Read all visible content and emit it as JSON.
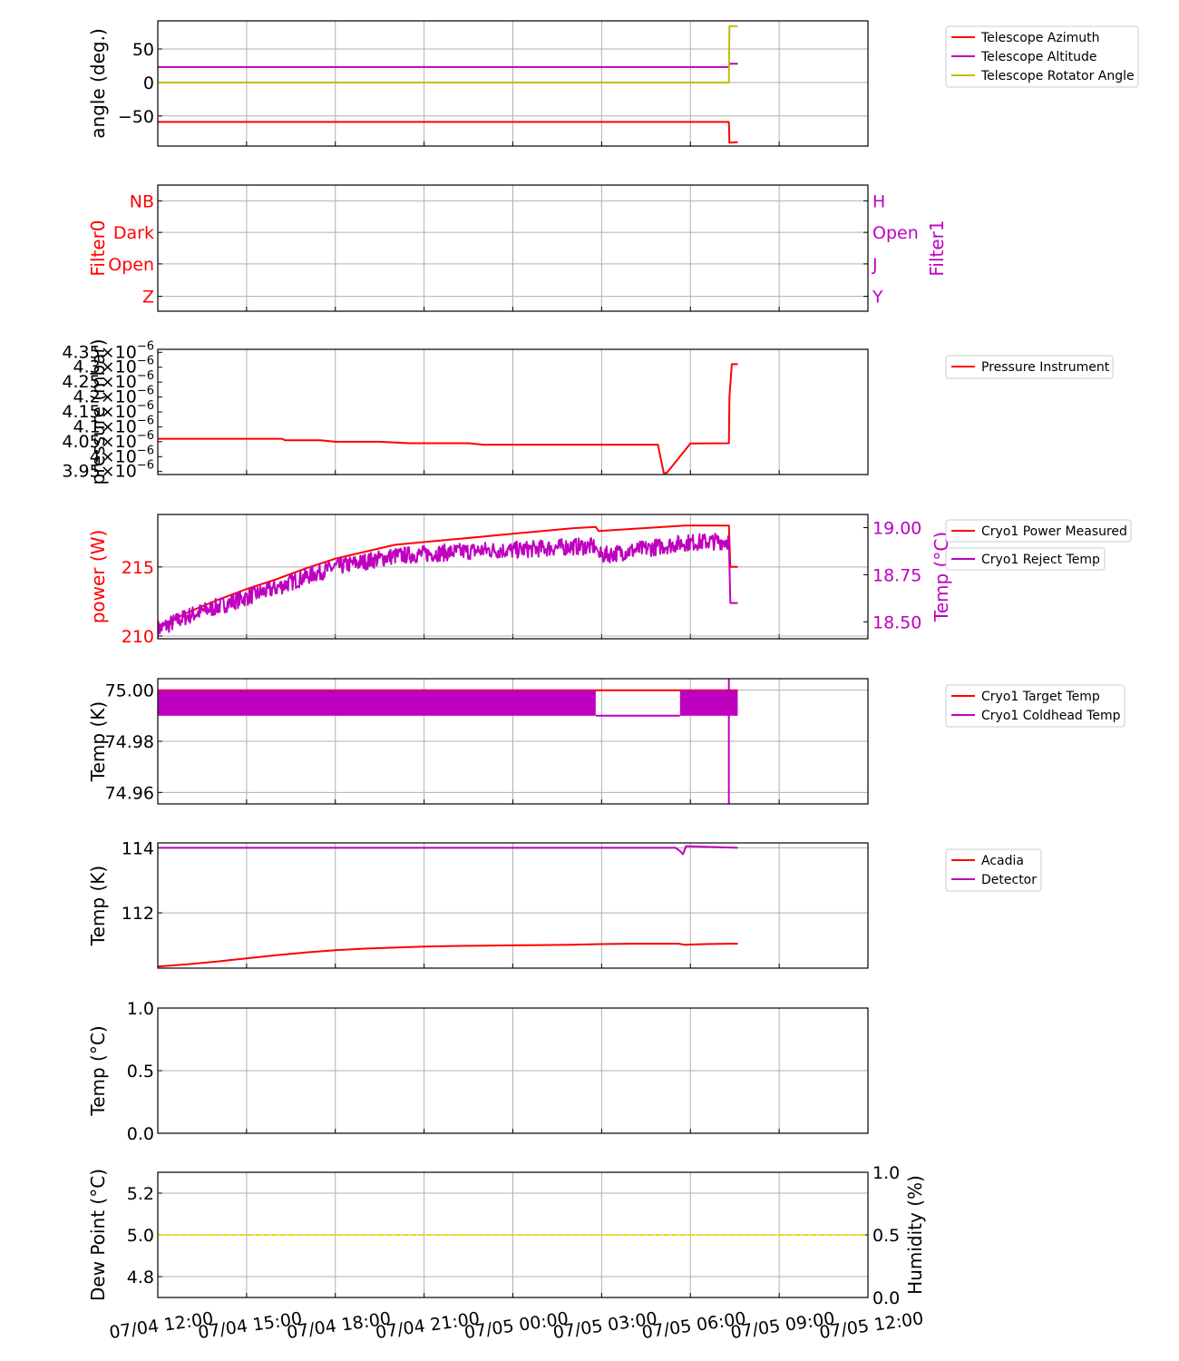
{
  "x_axis": {
    "tick_labels": [
      "07/04 12:00",
      "07/04 15:00",
      "07/04 18:00",
      "07/04 21:00",
      "07/05 00:00",
      "07/05 03:00",
      "07/05 06:00",
      "07/05 09:00",
      "07/05 12:00"
    ],
    "range_hours": [
      0,
      24
    ]
  },
  "colors": {
    "red": "#ff0000",
    "magenta": "#bf00bf",
    "olive": "#bfbf00",
    "gold": "#ffd700"
  },
  "chart_data": [
    {
      "id": "telescope",
      "type": "line",
      "ylabel": "angle (deg.)",
      "ylim": [
        -95,
        92
      ],
      "yticks": [
        -50,
        0,
        50
      ],
      "ytick_labels": [
        "−50",
        "0",
        "50"
      ],
      "legend": [
        "Telescope Azimuth",
        "Telescope Altitude",
        "Telescope Rotator Angle"
      ],
      "series": [
        {
          "name": "Telescope Azimuth",
          "color": "#ff0000",
          "x": [
            0,
            19.3,
            19.32,
            19.6
          ],
          "y": [
            -59,
            -59,
            -90,
            -89
          ]
        },
        {
          "name": "Telescope Altitude",
          "color": "#bf00bf",
          "x": [
            0,
            19.3,
            19.32,
            19.6
          ],
          "y": [
            23,
            23,
            28,
            28
          ]
        },
        {
          "name": "Telescope Rotator Angle",
          "color": "#bfbf00",
          "x": [
            0,
            19.3,
            19.32,
            19.6
          ],
          "y": [
            0,
            0,
            84,
            84
          ]
        }
      ]
    },
    {
      "id": "filters",
      "type": "line",
      "ylabel": "Filter0",
      "ylabel_right": "Filter1",
      "ylim": [
        0,
        4
      ],
      "ytick_labels": [
        "Z",
        "Open",
        "Dark",
        "NB"
      ],
      "ytick_labels_right": [
        "Y",
        "J",
        "Open",
        "H"
      ],
      "series": []
    },
    {
      "id": "pressure",
      "type": "line",
      "ylabel": "pressure (mbar)",
      "ylim": [
        3.94,
        4.36
      ],
      "ytick_mantissas": [
        "3.95",
        "4",
        "4.05",
        "4.1",
        "4.15",
        "4.2",
        "4.25",
        "4.3",
        "4.35"
      ],
      "ytick_values": [
        3.95,
        4.0,
        4.05,
        4.1,
        4.15,
        4.2,
        4.25,
        4.3,
        4.35
      ],
      "ytick_suffix": "×10",
      "ytick_exponent": "−6",
      "legend": [
        "Pressure Instrument"
      ],
      "series": [
        {
          "name": "Pressure Instrument",
          "color": "#ff0000",
          "x": [
            0,
            4.2,
            4.3,
            5.5,
            6,
            7.5,
            8.5,
            10.5,
            11,
            12.5,
            14,
            15.5,
            16.8,
            16.9,
            17.1,
            17.2,
            18,
            19.3,
            19.32,
            19.4,
            19.6
          ],
          "y": [
            4.06,
            4.06,
            4.055,
            4.055,
            4.05,
            4.05,
            4.045,
            4.045,
            4.04,
            4.04,
            4.04,
            4.04,
            4.04,
            4.04,
            3.945,
            3.945,
            4.044,
            4.045,
            4.2,
            4.31,
            4.31
          ]
        }
      ]
    },
    {
      "id": "cryo_power",
      "type": "line",
      "ylabel": "power (W)",
      "ylabel_right": "Temp (°C)",
      "ylim": [
        209.8,
        218.8
      ],
      "yticks": [
        210,
        215
      ],
      "ytick_labels": [
        "210",
        "215"
      ],
      "ylim_right": [
        18.41,
        19.07
      ],
      "yticks_right": [
        18.5,
        18.75,
        19.0
      ],
      "ytick_labels_right": [
        "18.50",
        "18.75",
        "19.00"
      ],
      "legend": [
        "Cryo1 Power Measured",
        "Cryo1 Reject Temp"
      ],
      "series": [
        {
          "name": "Cryo1 Power Measured",
          "color": "#ff0000",
          "x": [
            0,
            1,
            2,
            3,
            4,
            5,
            6,
            7,
            8,
            9,
            10,
            11,
            12,
            13,
            14,
            14.8,
            14.9,
            17.8,
            19.3,
            19.35,
            19.6
          ],
          "y": [
            210.6,
            211.7,
            212.6,
            213.4,
            214.1,
            214.9,
            215.6,
            216.1,
            216.6,
            216.8,
            217.0,
            217.2,
            217.4,
            217.6,
            217.8,
            217.9,
            217.6,
            218.0,
            218.0,
            215.0,
            215.0
          ]
        },
        {
          "name": "Cryo1 Reject Temp",
          "color": "#bf00bf",
          "x": [
            0,
            1,
            2,
            3,
            4,
            5,
            6,
            7,
            8,
            9,
            10,
            11,
            12,
            13,
            14,
            14.8,
            14.9,
            17.8,
            19.3,
            19.35,
            19.6
          ],
          "y": [
            18.46,
            18.53,
            18.58,
            18.63,
            18.68,
            18.74,
            18.79,
            18.82,
            18.85,
            18.86,
            18.87,
            18.88,
            18.88,
            18.89,
            18.9,
            18.9,
            18.85,
            18.92,
            18.93,
            18.6,
            18.6
          ],
          "noise": 0.045
        }
      ]
    },
    {
      "id": "cryo_target",
      "type": "line",
      "ylabel": "Temp (K)",
      "ylim": [
        74.9555,
        75.0045
      ],
      "yticks": [
        74.96,
        74.98,
        75.0
      ],
      "ytick_labels": [
        "74.96",
        "74.98",
        "75.00"
      ],
      "legend": [
        "Cryo1 Target Temp",
        "Cryo1 Coldhead Temp"
      ],
      "series": [
        {
          "name": "Cryo1 Target Temp",
          "color": "#ff0000",
          "x": [
            0,
            19.6
          ],
          "y": [
            75.0,
            75.0
          ]
        },
        {
          "name": "Cryo1 Coldhead Temp",
          "color": "#bf00bf",
          "bands": [
            [
              0,
              14.8
            ],
            [
              17.65,
              19.6
            ]
          ],
          "band_range": [
            74.99,
            75.0
          ],
          "x": [
            14.8,
            17.65
          ],
          "y": [
            74.99,
            74.99
          ]
        }
      ]
    },
    {
      "id": "acadia_detector",
      "type": "line",
      "ylabel": "Temp (K)",
      "ylim": [
        110.3,
        114.15
      ],
      "yticks": [
        112,
        114
      ],
      "ytick_labels": [
        "112",
        "114"
      ],
      "legend": [
        "Acadia",
        "Detector"
      ],
      "series": [
        {
          "name": "Acadia",
          "color": "#ff0000",
          "x": [
            0,
            1,
            2,
            3,
            4,
            5,
            6,
            7,
            8,
            9,
            10,
            11,
            12,
            13,
            14,
            15,
            16,
            17.6,
            17.8,
            18.5,
            19.3,
            19.6
          ],
          "y": [
            110.35,
            110.42,
            110.5,
            110.6,
            110.7,
            110.78,
            110.85,
            110.9,
            110.93,
            110.96,
            110.98,
            110.99,
            111.0,
            111.01,
            111.02,
            111.04,
            111.05,
            111.05,
            111.02,
            111.04,
            111.05,
            111.05
          ]
        },
        {
          "name": "Detector",
          "color": "#bf00bf",
          "x": [
            0,
            17.5,
            17.65,
            17.75,
            17.85,
            19.6
          ],
          "y": [
            114.0,
            114.0,
            113.9,
            113.8,
            114.05,
            114.0
          ]
        }
      ]
    },
    {
      "id": "temp_c",
      "type": "line",
      "ylabel": "Temp (°C)",
      "ylim": [
        0,
        1
      ],
      "yticks": [
        0,
        0.5,
        1.0
      ],
      "ytick_labels": [
        "0.0",
        "0.5",
        "1.0"
      ],
      "series": []
    },
    {
      "id": "dew_point",
      "type": "line",
      "ylabel": "Dew Point (°C)",
      "ylabel_right": "Humidity (%)",
      "ylim": [
        4.7,
        5.3
      ],
      "yticks": [
        4.8,
        5.0,
        5.2
      ],
      "ytick_labels": [
        "4.8",
        "5.0",
        "5.2"
      ],
      "ylim_right": [
        0,
        1
      ],
      "yticks_right": [
        0,
        0.5,
        1.0
      ],
      "ytick_labels_right": [
        "0.0",
        "0.5",
        "1.0"
      ],
      "series": [
        {
          "color": "#ffd700",
          "dashed": true,
          "x": [
            0,
            24
          ],
          "y": [
            5.0,
            5.0
          ]
        }
      ]
    }
  ]
}
